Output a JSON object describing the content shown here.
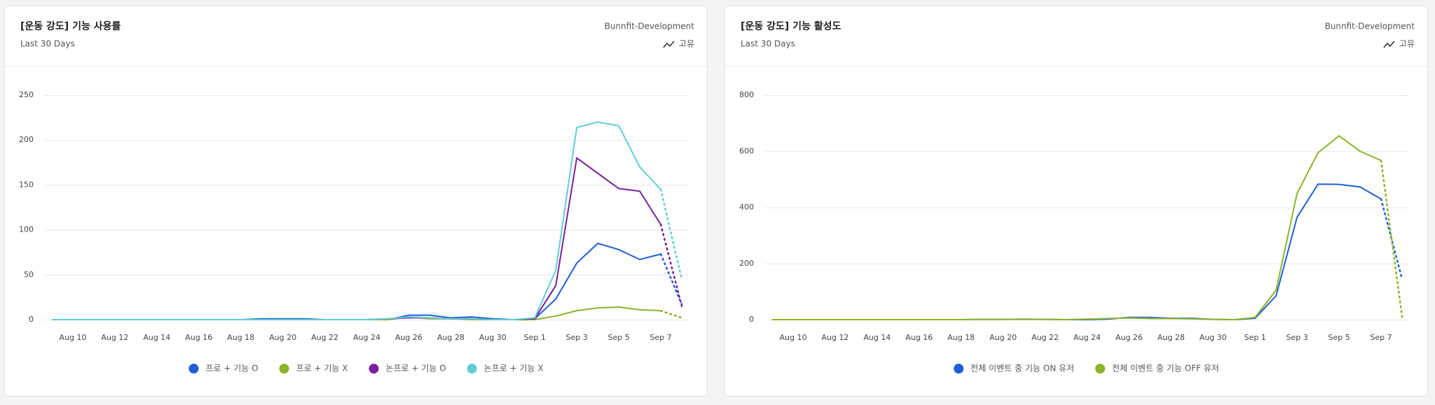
{
  "chart_data": [
    {
      "type": "line",
      "title": "[운동 강도] 기능 사용률",
      "subtitle": "Last 30 Days",
      "source": "Bunnfit-Development",
      "mode_label": "고유",
      "categories": [
        null,
        "Aug 10",
        null,
        "Aug 12",
        null,
        "Aug 14",
        null,
        "Aug 16",
        null,
        "Aug 18",
        null,
        "Aug 20",
        null,
        "Aug 22",
        null,
        "Aug 24",
        null,
        "Aug 26",
        null,
        "Aug 28",
        null,
        "Aug 30",
        null,
        "Sep 1",
        null,
        "Sep 3",
        null,
        "Sep 5",
        null,
        "Sep 7",
        null
      ],
      "series": [
        {
          "name": "프로 + 기능 O",
          "color": "#1f5fd6",
          "values": [
            0,
            0,
            0,
            0,
            0,
            0,
            0,
            0,
            0,
            0,
            1,
            1,
            1,
            0,
            0,
            0,
            0,
            5,
            5,
            2,
            3,
            1,
            0,
            1,
            23,
            63,
            85,
            78,
            67,
            73,
            17
          ]
        },
        {
          "name": "프로 + 기능 X",
          "color": "#8db32a",
          "values": [
            0,
            0,
            0,
            0,
            0,
            0,
            0,
            0,
            0,
            0,
            0,
            0,
            0,
            0,
            0,
            0,
            0,
            3,
            1,
            1,
            0,
            0,
            0,
            0,
            4,
            10,
            13,
            14,
            11,
            10,
            2
          ]
        },
        {
          "name": "논프로 + 기능 O",
          "color": "#7a1fa2",
          "values": [
            0,
            0,
            0,
            0,
            0,
            0,
            0,
            0,
            0,
            0,
            0,
            0,
            0,
            0,
            0,
            0,
            1,
            2,
            2,
            1,
            1,
            0,
            0,
            1,
            38,
            180,
            163,
            146,
            143,
            106,
            15
          ]
        },
        {
          "name": "논프로 + 기능 X",
          "color": "#62cdd6",
          "values": [
            0,
            0,
            0,
            0,
            0,
            0,
            0,
            0,
            0,
            0,
            0,
            0,
            0,
            0,
            0,
            0,
            1,
            3,
            2,
            1,
            1,
            0,
            0,
            2,
            55,
            214,
            220,
            216,
            170,
            145,
            45
          ]
        }
      ],
      "ylim": [
        0,
        250
      ],
      "yticks": [
        0,
        50,
        100,
        150,
        200,
        250
      ],
      "grid": true,
      "dotted_last_segment": true
    },
    {
      "type": "line",
      "title": "[운동 강도] 기능 활성도",
      "subtitle": "Last 30 Days",
      "source": "Bunnfit-Development",
      "mode_label": "고유",
      "categories": [
        null,
        "Aug 10",
        null,
        "Aug 12",
        null,
        "Aug 14",
        null,
        "Aug 16",
        null,
        "Aug 18",
        null,
        "Aug 20",
        null,
        "Aug 22",
        null,
        "Aug 24",
        null,
        "Aug 26",
        null,
        "Aug 28",
        null,
        "Aug 30",
        null,
        "Sep 1",
        null,
        "Sep 3",
        null,
        "Sep 5",
        null,
        "Sep 7",
        null
      ],
      "series": [
        {
          "name": "전체 이벤트 중 기능 ON 유저",
          "color": "#1f5fd6",
          "values": [
            0,
            0,
            0,
            0,
            0,
            0,
            0,
            0,
            0,
            0,
            1,
            1,
            2,
            1,
            0,
            0,
            2,
            8,
            8,
            5,
            5,
            1,
            0,
            5,
            85,
            365,
            483,
            482,
            473,
            430,
            145
          ]
        },
        {
          "name": "전체 이벤트 중 기능 OFF 유저",
          "color": "#8db32a",
          "values": [
            0,
            0,
            0,
            0,
            0,
            0,
            0,
            0,
            0,
            0,
            1,
            1,
            1,
            1,
            0,
            2,
            4,
            6,
            4,
            4,
            3,
            1,
            0,
            8,
            105,
            450,
            595,
            655,
            600,
            567,
            10
          ]
        }
      ],
      "ylim": [
        0,
        800
      ],
      "yticks": [
        0,
        200,
        400,
        600,
        800
      ],
      "grid": true,
      "dotted_last_segment": true
    }
  ]
}
